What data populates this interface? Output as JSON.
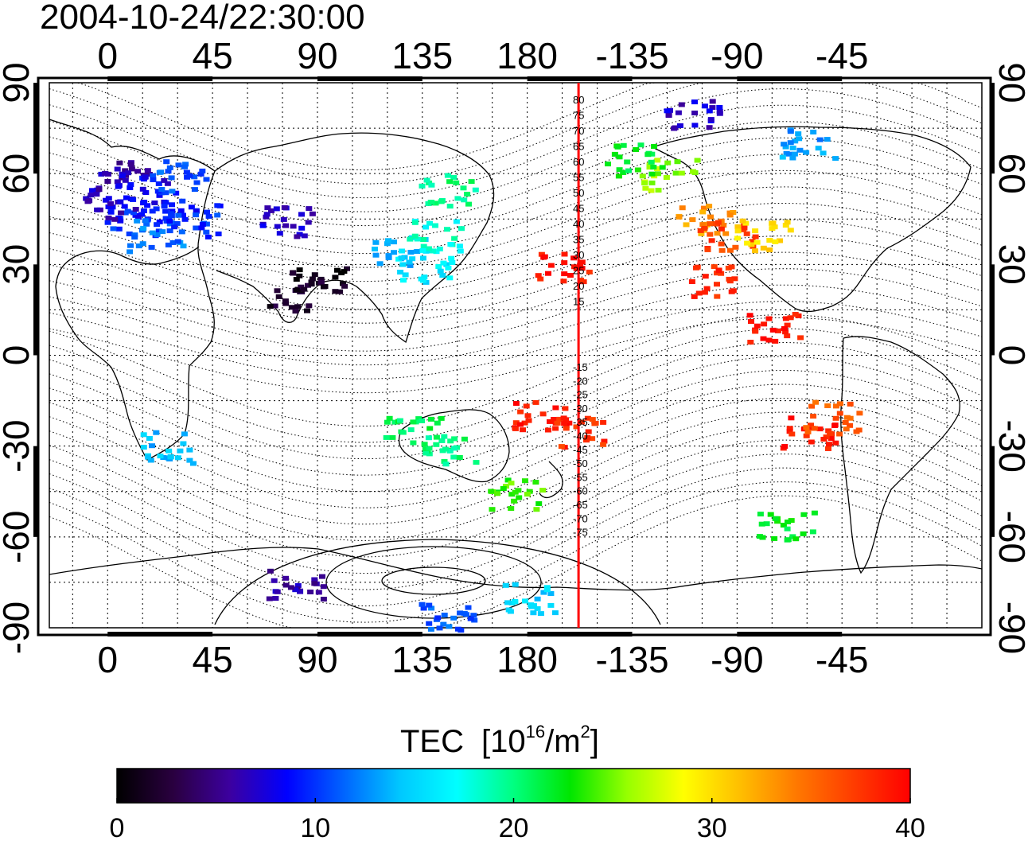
{
  "chart_data": {
    "type": "heatmap",
    "title": "2004-10-24/22:30:00",
    "x_axis": {
      "range_deg": [
        -25,
        375
      ],
      "tick_positions_deg": [
        0,
        45,
        90,
        135,
        180,
        225,
        270,
        315
      ],
      "tick_labels": [
        "0",
        "45",
        "90",
        "135",
        "180",
        "-135",
        "-90",
        "-45"
      ]
    },
    "y_axis": {
      "range_deg": [
        -90,
        90
      ],
      "tick_positions_deg": [
        90,
        60,
        30,
        0,
        -30,
        -60,
        -90
      ],
      "tick_labels": [
        "90",
        "60",
        "30",
        "0",
        "-30",
        "-60",
        "-90"
      ]
    },
    "grid": "dotted",
    "colorbar": {
      "label": "TEC",
      "unit_main": "[10",
      "unit_exp": "16",
      "unit_mid": "/m",
      "unit_exp2": "2",
      "unit_end": "]",
      "min": 0,
      "max": 40,
      "tick_values": [
        0,
        10,
        20,
        30,
        40
      ],
      "tick_labels": [
        "0",
        "10",
        "20",
        "30",
        "40"
      ],
      "colormap": [
        "#000000",
        "#2a0040",
        "#3c00a0",
        "#0000ff",
        "#0064ff",
        "#00c8ff",
        "#00ffff",
        "#00ff80",
        "#00e600",
        "#96ff00",
        "#ffff00",
        "#ffbe00",
        "#ff7800",
        "#ff3c00",
        "#ff0000"
      ]
    },
    "magnetic_latitude_labels": [
      "80",
      "75",
      "70",
      "65",
      "60",
      "55",
      "50",
      "45",
      "40",
      "35",
      "30",
      "25",
      "20",
      "15",
      "-15",
      "-20",
      "-25",
      "-30",
      "-35",
      "-40",
      "-45",
      "-50",
      "-55",
      "-60",
      "-65",
      "-70",
      "-75"
    ],
    "meridian_line": {
      "longitude_deg": 202,
      "color": "#ff0000"
    },
    "tec_cells": [
      {
        "lon": 5,
        "lat": 60,
        "tec": 6
      },
      {
        "lon": 15,
        "lat": 55,
        "tec": 8
      },
      {
        "lon": 25,
        "lat": 50,
        "tec": 9
      },
      {
        "lon": 10,
        "lat": 45,
        "tec": 10
      },
      {
        "lon": 30,
        "lat": 60,
        "tec": 11
      },
      {
        "lon": 0,
        "lat": 50,
        "tec": 7
      },
      {
        "lon": 20,
        "lat": 40,
        "tec": 12
      },
      {
        "lon": 35,
        "lat": 45,
        "tec": 10
      },
      {
        "lon": 75,
        "lat": 45,
        "tec": 7
      },
      {
        "lon": 90,
        "lat": 25,
        "tec": 1
      },
      {
        "lon": 80,
        "lat": 20,
        "tec": 2
      },
      {
        "lon": 125,
        "lat": 35,
        "tec": 14
      },
      {
        "lon": 135,
        "lat": 30,
        "tec": 16
      },
      {
        "lon": 140,
        "lat": 40,
        "tec": 18
      },
      {
        "lon": 145,
        "lat": 55,
        "tec": 20
      },
      {
        "lon": 195,
        "lat": 30,
        "tec": 39
      },
      {
        "lon": 185,
        "lat": -20,
        "tec": 39
      },
      {
        "lon": 200,
        "lat": -25,
        "tec": 38
      },
      {
        "lon": 175,
        "lat": -45,
        "tec": 24
      },
      {
        "lon": 145,
        "lat": -30,
        "tec": 20
      },
      {
        "lon": 130,
        "lat": -25,
        "tec": 21
      },
      {
        "lon": 25,
        "lat": -30,
        "tec": 14
      },
      {
        "lon": 255,
        "lat": 45,
        "tec": 33
      },
      {
        "lon": 265,
        "lat": 40,
        "tec": 37
      },
      {
        "lon": 280,
        "lat": 40,
        "tec": 30
      },
      {
        "lon": 260,
        "lat": 25,
        "tec": 38
      },
      {
        "lon": 240,
        "lat": 60,
        "tec": 26
      },
      {
        "lon": 225,
        "lat": 65,
        "tec": 22
      },
      {
        "lon": 300,
        "lat": -25,
        "tec": 39
      },
      {
        "lon": 310,
        "lat": -20,
        "tec": 36
      },
      {
        "lon": 290,
        "lat": -55,
        "tec": 22
      },
      {
        "lon": 285,
        "lat": 10,
        "tec": 39
      },
      {
        "lon": 80,
        "lat": -75,
        "tec": 6
      },
      {
        "lon": 145,
        "lat": -85,
        "tec": 11
      },
      {
        "lon": 180,
        "lat": -80,
        "tec": 15
      },
      {
        "lon": 250,
        "lat": 80,
        "tec": 7
      },
      {
        "lon": 300,
        "lat": 70,
        "tec": 13
      }
    ]
  }
}
